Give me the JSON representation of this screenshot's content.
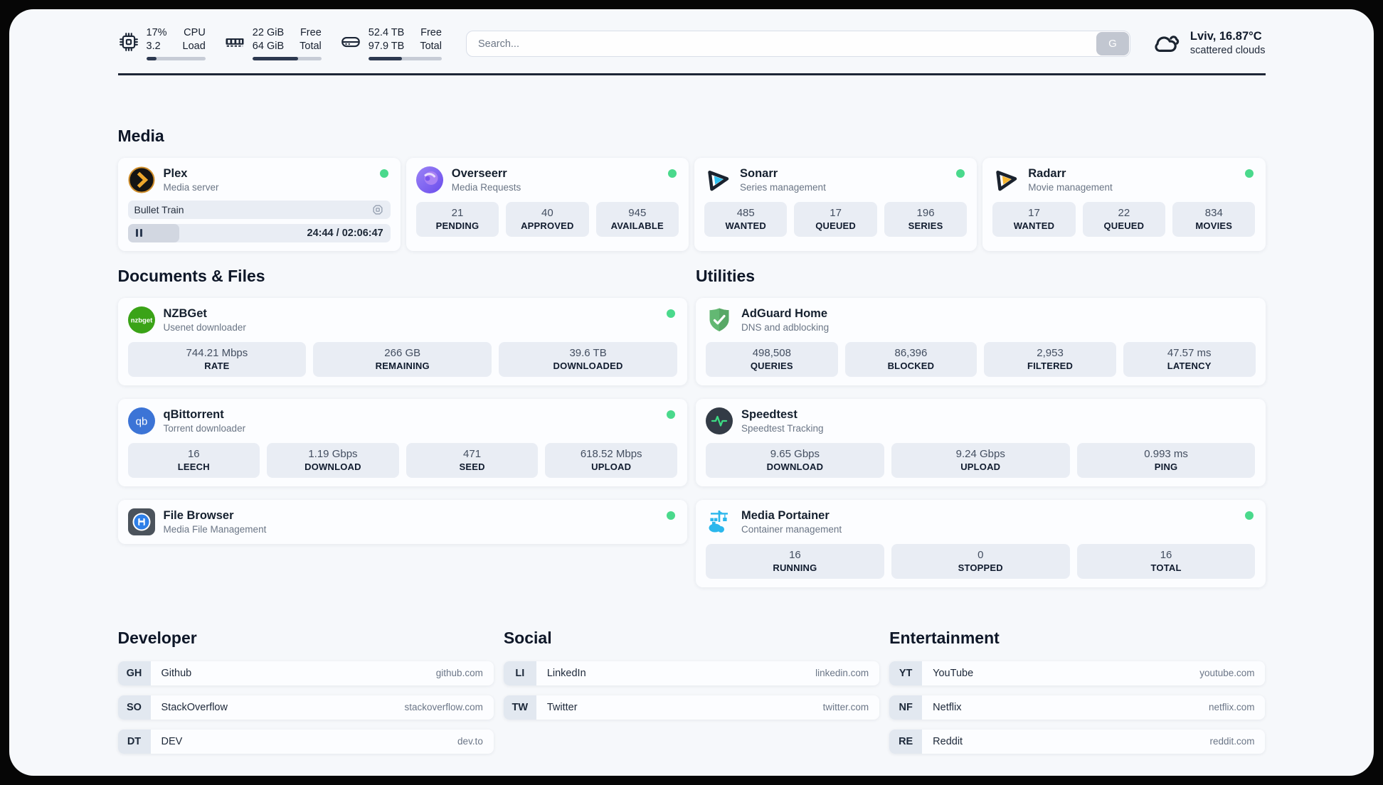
{
  "header": {
    "system_stats": [
      {
        "name": "cpu",
        "value1": "17%",
        "label1": "CPU",
        "value2": "3.2",
        "label2": "Load",
        "progress_percent": 17
      },
      {
        "name": "memory",
        "value1": "22 GiB",
        "label1": "Free",
        "value2": "64 GiB",
        "label2": "Total",
        "progress_percent": 66
      },
      {
        "name": "storage",
        "value1": "52.4 TB",
        "label1": "Free",
        "value2": "97.9 TB",
        "label2": "Total",
        "progress_percent": 46
      }
    ],
    "search": {
      "placeholder": "Search...",
      "engine_button": "G"
    },
    "weather": {
      "location_temp": "Lviv, 16.87°C",
      "condition": "scattered clouds"
    }
  },
  "sections": {
    "media": {
      "title": "Media",
      "apps": [
        {
          "name": "Plex",
          "description": "Media server",
          "online": true,
          "now_playing": {
            "title": "Bullet Train",
            "time": "24:44 / 02:06:47",
            "progress_percent": 19.5
          }
        },
        {
          "name": "Overseerr",
          "description": "Media Requests",
          "online": true,
          "stats": [
            {
              "value": "21",
              "label": "PENDING"
            },
            {
              "value": "40",
              "label": "APPROVED"
            },
            {
              "value": "945",
              "label": "AVAILABLE"
            }
          ]
        },
        {
          "name": "Sonarr",
          "description": "Series management",
          "online": true,
          "stats": [
            {
              "value": "485",
              "label": "WANTED"
            },
            {
              "value": "17",
              "label": "QUEUED"
            },
            {
              "value": "196",
              "label": "SERIES"
            }
          ]
        },
        {
          "name": "Radarr",
          "description": "Movie management",
          "online": true,
          "stats": [
            {
              "value": "17",
              "label": "WANTED"
            },
            {
              "value": "22",
              "label": "QUEUED"
            },
            {
              "value": "834",
              "label": "MOVIES"
            }
          ]
        }
      ]
    },
    "documents": {
      "title": "Documents & Files",
      "apps": [
        {
          "name": "NZBGet",
          "description": "Usenet downloader",
          "online": true,
          "stats": [
            {
              "value": "744.21 Mbps",
              "label": "RATE"
            },
            {
              "value": "266 GB",
              "label": "REMAINING"
            },
            {
              "value": "39.6 TB",
              "label": "DOWNLOADED"
            }
          ]
        },
        {
          "name": "qBittorrent",
          "description": "Torrent downloader",
          "online": true,
          "stats": [
            {
              "value": "16",
              "label": "LEECH"
            },
            {
              "value": "1.19 Gbps",
              "label": "DOWNLOAD"
            },
            {
              "value": "471",
              "label": "SEED"
            },
            {
              "value": "618.52 Mbps",
              "label": "UPLOAD"
            }
          ]
        },
        {
          "name": "File Browser",
          "description": "Media File Management",
          "online": true
        }
      ]
    },
    "utilities": {
      "title": "Utilities",
      "apps": [
        {
          "name": "AdGuard Home",
          "description": "DNS and adblocking",
          "stats": [
            {
              "value": "498,508",
              "label": "QUERIES"
            },
            {
              "value": "86,396",
              "label": "BLOCKED"
            },
            {
              "value": "2,953",
              "label": "FILTERED"
            },
            {
              "value": "47.57 ms",
              "label": "LATENCY"
            }
          ]
        },
        {
          "name": "Speedtest",
          "description": "Speedtest Tracking",
          "stats": [
            {
              "value": "9.65 Gbps",
              "label": "DOWNLOAD"
            },
            {
              "value": "9.24 Gbps",
              "label": "UPLOAD"
            },
            {
              "value": "0.993 ms",
              "label": "PING"
            }
          ]
        },
        {
          "name": "Media Portainer",
          "description": "Container management",
          "online": true,
          "stats": [
            {
              "value": "16",
              "label": "RUNNING"
            },
            {
              "value": "0",
              "label": "STOPPED"
            },
            {
              "value": "16",
              "label": "TOTAL"
            }
          ]
        }
      ]
    },
    "bookmarks": [
      {
        "title": "Developer",
        "links": [
          {
            "abbr": "GH",
            "name": "Github",
            "url": "github.com"
          },
          {
            "abbr": "SO",
            "name": "StackOverflow",
            "url": "stackoverflow.com"
          },
          {
            "abbr": "DT",
            "name": "DEV",
            "url": "dev.to"
          }
        ]
      },
      {
        "title": "Social",
        "links": [
          {
            "abbr": "LI",
            "name": "LinkedIn",
            "url": "linkedin.com"
          },
          {
            "abbr": "TW",
            "name": "Twitter",
            "url": "twitter.com"
          }
        ]
      },
      {
        "title": "Entertainment",
        "links": [
          {
            "abbr": "YT",
            "name": "YouTube",
            "url": "youtube.com"
          },
          {
            "abbr": "NF",
            "name": "Netflix",
            "url": "netflix.com"
          },
          {
            "abbr": "RE",
            "name": "Reddit",
            "url": "reddit.com"
          }
        ]
      }
    ]
  },
  "colors": {
    "online_dot": "#4ad98c",
    "plex_accent": "#eda72c",
    "sonarr_accent": "#2fc1f0",
    "radarr_accent": "#f7b731",
    "nzbget_green": "#3aa317",
    "qbittorrent_blue": "#3c74d6",
    "adguard_green": "#63b873",
    "speedtest_pulse": "#3ddc84",
    "portainer_blue": "#2ab7ec",
    "progress_fill": "#2d3950"
  }
}
